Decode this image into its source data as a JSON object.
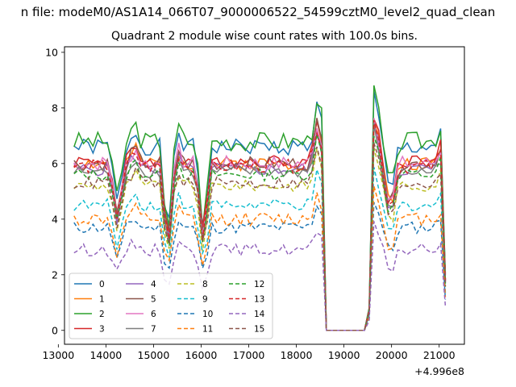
{
  "chart_data": {
    "type": "line",
    "title": "n file: modeM0/AS1A14_066T07_9000006522_54599cztM0_level2_quad_clean",
    "subtitle": "Quadrant 2 module wise count rates with 100.0s bins.",
    "xlabel": "",
    "ylabel": "",
    "offset_label": "+4.996e8",
    "xlim": [
      13130,
      21530
    ],
    "ylim": [
      -0.5,
      10.2
    ],
    "x_ticks": [
      13000,
      14000,
      15000,
      16000,
      17000,
      18000,
      19000,
      20000,
      21000
    ],
    "x_tick_labels": [
      "13000",
      "14000",
      "15000",
      "16000",
      "17000",
      "18000",
      "19000",
      "20000",
      "21000"
    ],
    "y_ticks": [
      0,
      2,
      4,
      6,
      8,
      10
    ],
    "y_tick_labels": [
      "0",
      "2",
      "4",
      "6",
      "8",
      "10"
    ],
    "grid": false,
    "legend_position": "lower-left",
    "legend_columns": 4,
    "series": [
      {
        "name": "0",
        "color": "#1f77b4",
        "style": "solid",
        "base": 6.6,
        "noise": 0.3,
        "seed": 1
      },
      {
        "name": "1",
        "color": "#ff7f0e",
        "style": "solid",
        "base": 6.0,
        "noise": 0.25,
        "seed": 2
      },
      {
        "name": "2",
        "color": "#2ca02c",
        "style": "solid",
        "base": 6.8,
        "noise": 0.35,
        "seed": 3
      },
      {
        "name": "3",
        "color": "#d62728",
        "style": "solid",
        "base": 6.1,
        "noise": 0.25,
        "seed": 4
      },
      {
        "name": "4",
        "color": "#9467bd",
        "style": "solid",
        "base": 5.8,
        "noise": 0.25,
        "seed": 5
      },
      {
        "name": "5",
        "color": "#8c564b",
        "style": "solid",
        "base": 6.0,
        "noise": 0.25,
        "seed": 6
      },
      {
        "name": "6",
        "color": "#e377c2",
        "style": "solid",
        "base": 6.0,
        "noise": 0.28,
        "seed": 7
      },
      {
        "name": "7",
        "color": "#7f7f7f",
        "style": "solid",
        "base": 5.7,
        "noise": 0.22,
        "seed": 8
      },
      {
        "name": "8",
        "color": "#bcbd22",
        "style": "dashed",
        "base": 5.2,
        "noise": 0.2,
        "seed": 9
      },
      {
        "name": "9",
        "color": "#17becf",
        "style": "dashed",
        "base": 4.5,
        "noise": 0.22,
        "seed": 10
      },
      {
        "name": "10",
        "color": "#1f77b4",
        "style": "dashed",
        "base": 3.7,
        "noise": 0.22,
        "seed": 11
      },
      {
        "name": "11",
        "color": "#ff7f0e",
        "style": "dashed",
        "base": 4.0,
        "noise": 0.25,
        "seed": 12
      },
      {
        "name": "12",
        "color": "#2ca02c",
        "style": "dashed",
        "base": 5.6,
        "noise": 0.22,
        "seed": 13
      },
      {
        "name": "13",
        "color": "#d62728",
        "style": "dashed",
        "base": 5.9,
        "noise": 0.25,
        "seed": 14
      },
      {
        "name": "14",
        "color": "#9467bd",
        "style": "dashed",
        "base": 2.9,
        "noise": 0.22,
        "seed": 15
      },
      {
        "name": "15",
        "color": "#8c564b",
        "style": "dashed",
        "base": 5.3,
        "noise": 0.22,
        "seed": 16
      }
    ]
  }
}
